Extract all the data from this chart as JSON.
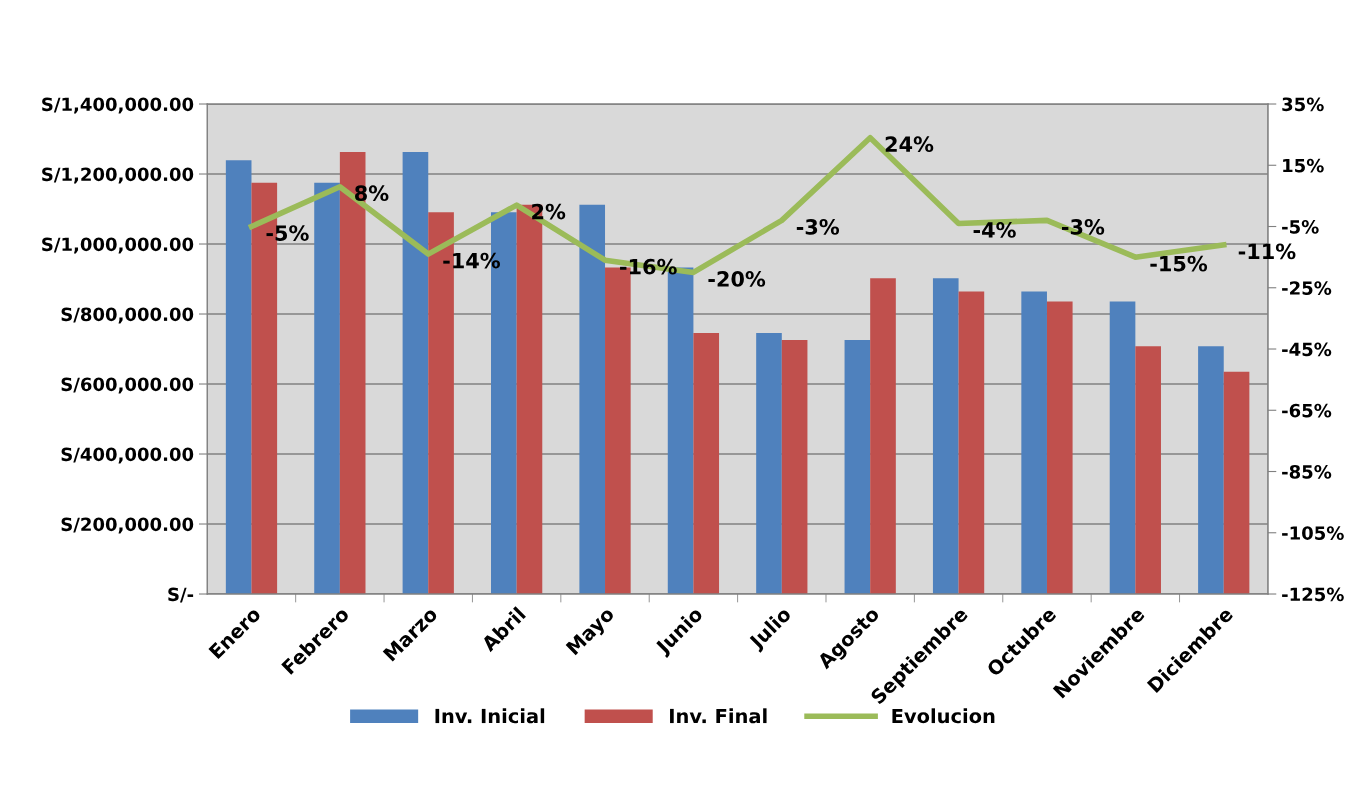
{
  "chart_data": {
    "type": "bar",
    "categories": [
      "Enero",
      "Febrero",
      "Marzo",
      "Abril",
      "Mayo",
      "Junio",
      "Julio",
      "Agosto",
      "Septiembre",
      "Octubre",
      "Noviembre",
      "Diciembre"
    ],
    "series": [
      {
        "name": "Inv. Inicial",
        "color": "#4f81bd",
        "values": [
          1239000,
          1175000,
          1263000,
          1091000,
          1112000,
          933000,
          746000,
          726000,
          902000,
          864000,
          836000,
          708000
        ]
      },
      {
        "name": "Inv. Final",
        "color": "#c0504d",
        "values": [
          1175000,
          1263000,
          1091000,
          1112000,
          933000,
          746000,
          726000,
          902000,
          864000,
          836000,
          708000,
          635000
        ]
      },
      {
        "name": "Evolucion",
        "type": "line",
        "axis": "y2",
        "color": "#9bbb59",
        "marker": "none",
        "values": [
          -5,
          8,
          -14,
          2,
          -16,
          -20,
          -3,
          24,
          -4,
          -3,
          -15,
          -11
        ],
        "value_labels": [
          "-5%",
          "8%",
          "-14%",
          "2%",
          "-16%",
          "-20%",
          "-3%",
          "24%",
          "-4%",
          "-3%",
          "-15%",
          "-11%"
        ]
      }
    ],
    "ylim": [
      0,
      1400000
    ],
    "yticks": [
      {
        "value": 0,
        "label": "S/-"
      },
      {
        "value": 200000,
        "label": "S/200,000.00"
      },
      {
        "value": 400000,
        "label": "S/400,000.00"
      },
      {
        "value": 600000,
        "label": "S/600,000.00"
      },
      {
        "value": 800000,
        "label": "S/800,000.00"
      },
      {
        "value": 1000000,
        "label": "S/1,000,000.00"
      },
      {
        "value": 1200000,
        "label": "S/1,200,000.00"
      },
      {
        "value": 1400000,
        "label": "S/1,400,000.00"
      }
    ],
    "y2lim": [
      -125,
      35
    ],
    "y2ticks": [
      {
        "value": -125,
        "label": "-125%"
      },
      {
        "value": -105,
        "label": "-105%"
      },
      {
        "value": -85,
        "label": "-85%"
      },
      {
        "value": -65,
        "label": "-65%"
      },
      {
        "value": -45,
        "label": "-45%"
      },
      {
        "value": -25,
        "label": "-25%"
      },
      {
        "value": -5,
        "label": "-5%"
      },
      {
        "value": 15,
        "label": "15%"
      },
      {
        "value": 35,
        "label": "35%"
      }
    ],
    "grid": "y",
    "legend": "bottom"
  }
}
